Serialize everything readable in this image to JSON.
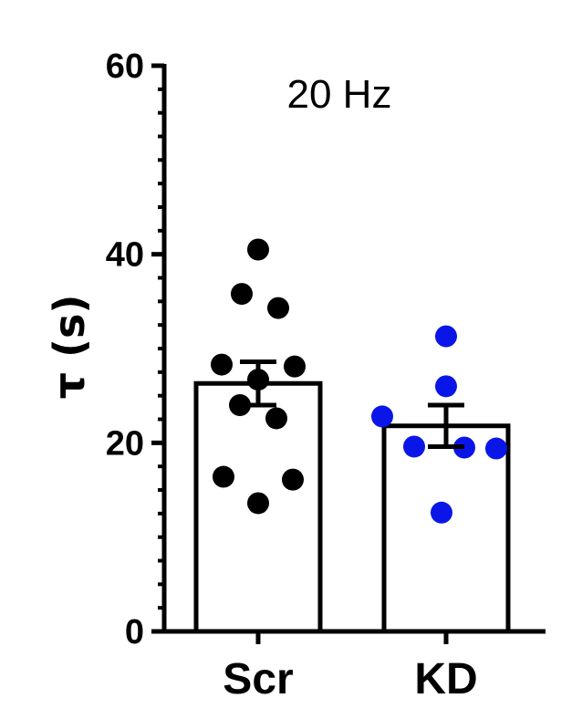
{
  "chart_data": {
    "type": "bar",
    "title": "20 Hz",
    "ylabel": "τ (s)",
    "xlabel": "",
    "ylim": [
      0,
      60
    ],
    "yticks": [
      0,
      20,
      40,
      60
    ],
    "minor_tick_step": 2.5,
    "categories": [
      "Scr",
      "KD"
    ],
    "means": [
      26.3,
      21.8
    ],
    "sem": [
      2.3,
      2.2
    ],
    "bar_fill": "#ffffff",
    "bar_edge": "#000000",
    "points": [
      {
        "category": "Scr",
        "color": "#000000",
        "values": [
          40.5,
          35.8,
          34.3,
          28.3,
          28.1,
          26.7,
          24.0,
          22.6,
          16.4,
          16.1,
          13.6
        ]
      },
      {
        "category": "KD",
        "color": "#0a16e8",
        "values": [
          31.3,
          26.0,
          22.8,
          19.6,
          19.4,
          19.5,
          12.6
        ]
      }
    ]
  }
}
